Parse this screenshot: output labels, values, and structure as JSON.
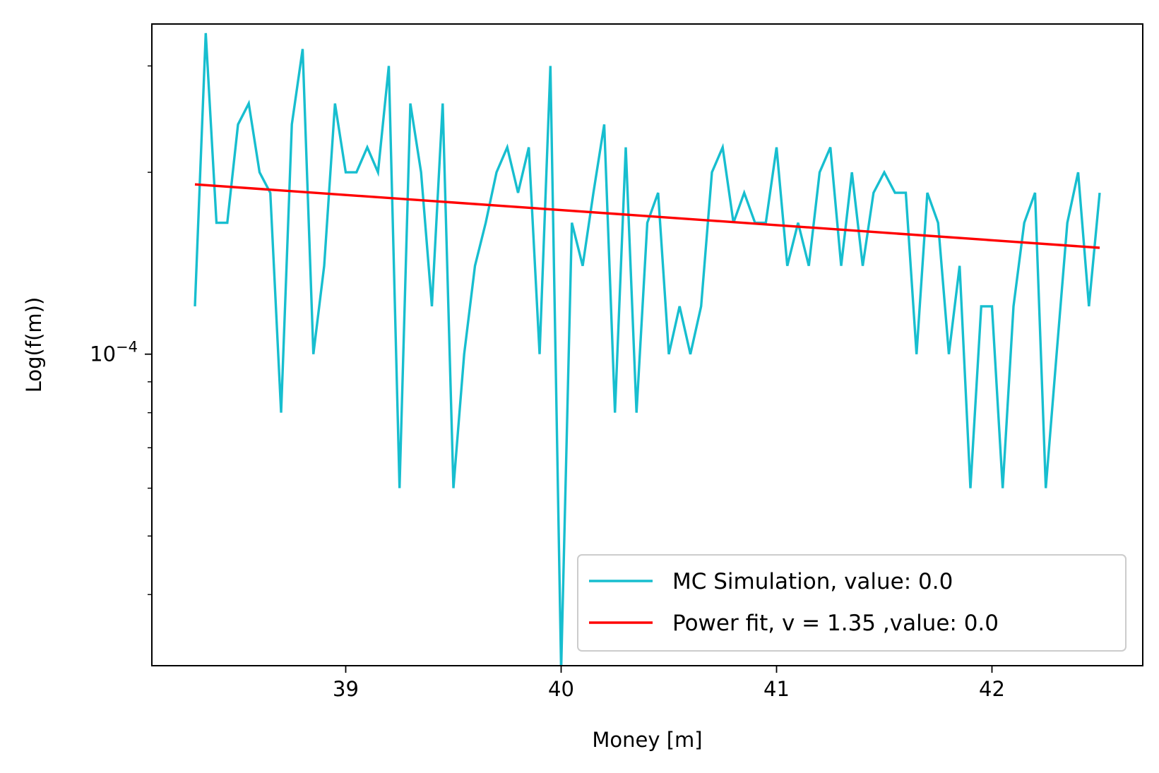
{
  "chart_data": {
    "type": "line",
    "xlabel": "Money [m]",
    "ylabel": "Log(f(m))",
    "y_scale": "log",
    "xlim": [
      38.1,
      42.7
    ],
    "ylim": [
      3.05e-05,
      0.000352
    ],
    "x_ticks": [
      39,
      40,
      41,
      42
    ],
    "x_tick_labels": [
      "39",
      "40",
      "41",
      "42"
    ],
    "y_major_ticks": [
      0.0001
    ],
    "y_major_tick_label_base": "10",
    "y_major_tick_label_exp": "−4",
    "y_minor_ticks": [
      4e-05,
      5e-05,
      6e-05,
      7e-05,
      8e-05,
      9e-05,
      0.0002,
      0.0003
    ],
    "grid": false,
    "legend_position": "bottom-right",
    "series": [
      {
        "name": "MC Simulation, value: 0.0",
        "color": "#17becf",
        "x": [
          38.3,
          38.35,
          38.4,
          38.45,
          38.5,
          38.55,
          38.6,
          38.65,
          38.7,
          38.75,
          38.8,
          38.85,
          38.9,
          38.95,
          39.0,
          39.05,
          39.1,
          39.15,
          39.2,
          39.25,
          39.3,
          39.35,
          39.4,
          39.45,
          39.5,
          39.55,
          39.6,
          39.65,
          39.7,
          39.75,
          39.8,
          39.85,
          39.9,
          39.95,
          40.0,
          40.05,
          40.1,
          40.15,
          40.2,
          40.25,
          40.3,
          40.35,
          40.4,
          40.45,
          40.5,
          40.55,
          40.6,
          40.65,
          40.7,
          40.75,
          40.8,
          40.85,
          40.9,
          40.95,
          41.0,
          41.05,
          41.1,
          41.15,
          41.2,
          41.25,
          41.3,
          41.35,
          41.4,
          41.45,
          41.5,
          41.55,
          41.6,
          41.65,
          41.7,
          41.75,
          41.8,
          41.85,
          41.9,
          41.95,
          42.0,
          42.05,
          42.1,
          42.15,
          42.2,
          42.25,
          42.3,
          42.35,
          42.4,
          42.45,
          42.5
        ],
        "y": [
          0.00012,
          0.00034,
          0.000165,
          0.000165,
          0.00024,
          0.00026,
          0.0002,
          0.000185,
          8e-05,
          0.00024,
          0.00032,
          0.0001,
          0.00014,
          0.00026,
          0.0002,
          0.0002,
          0.00022,
          0.0002,
          0.0003,
          6e-05,
          0.00026,
          0.0002,
          0.00012,
          0.00026,
          6e-05,
          0.0001,
          0.00014,
          0.000165,
          0.0002,
          0.00022,
          0.000185,
          0.00022,
          0.0001,
          0.0003,
          3e-05,
          0.000165,
          0.00014,
          0.000185,
          0.00024,
          8e-05,
          0.00022,
          8e-05,
          0.000165,
          0.000185,
          0.0001,
          0.00012,
          0.0001,
          0.00012,
          0.0002,
          0.00022,
          0.000165,
          0.000185,
          0.000165,
          0.000165,
          0.00022,
          0.00014,
          0.000165,
          0.00014,
          0.0002,
          0.00022,
          0.00014,
          0.0002,
          0.00014,
          0.000185,
          0.0002,
          0.000185,
          0.000185,
          0.0001,
          0.000185,
          0.000165,
          0.0001,
          0.00014,
          6e-05,
          0.00012,
          0.00012,
          6e-05,
          0.00012,
          0.000165,
          0.000185,
          6e-05,
          0.0001,
          0.000165,
          0.0002,
          0.00012,
          0.000185
        ]
      },
      {
        "name": "Power fit, v = 1.35 ,value: 0.0",
        "color": "#ff0000",
        "x": [
          38.3,
          42.5
        ],
        "y": [
          0.000191,
          0.00015
        ]
      }
    ]
  }
}
